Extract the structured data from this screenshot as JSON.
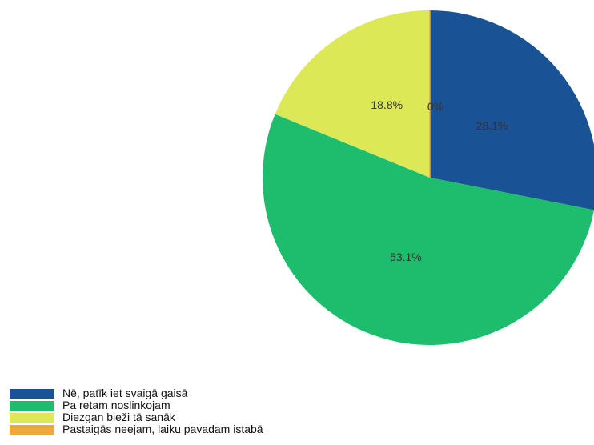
{
  "chart_data": {
    "type": "pie",
    "categories": [
      "Nē, patīk iet svaigā gaisā",
      "Pa retam noslinkojam",
      "Diezgan bieži tā sanāk",
      "Pastaigās neejam, laiku pavadam istabā"
    ],
    "values": [
      28.1,
      53.1,
      18.8,
      0
    ],
    "data_labels": [
      "28.1%",
      "53.1%",
      "18.8%",
      "0%"
    ],
    "colors": [
      "#1a5296",
      "#1ebd6e",
      "#dce855",
      "#f0a838"
    ],
    "start_angle": "12 o'clock",
    "direction": "clockwise",
    "legend_position": "bottom-left"
  }
}
